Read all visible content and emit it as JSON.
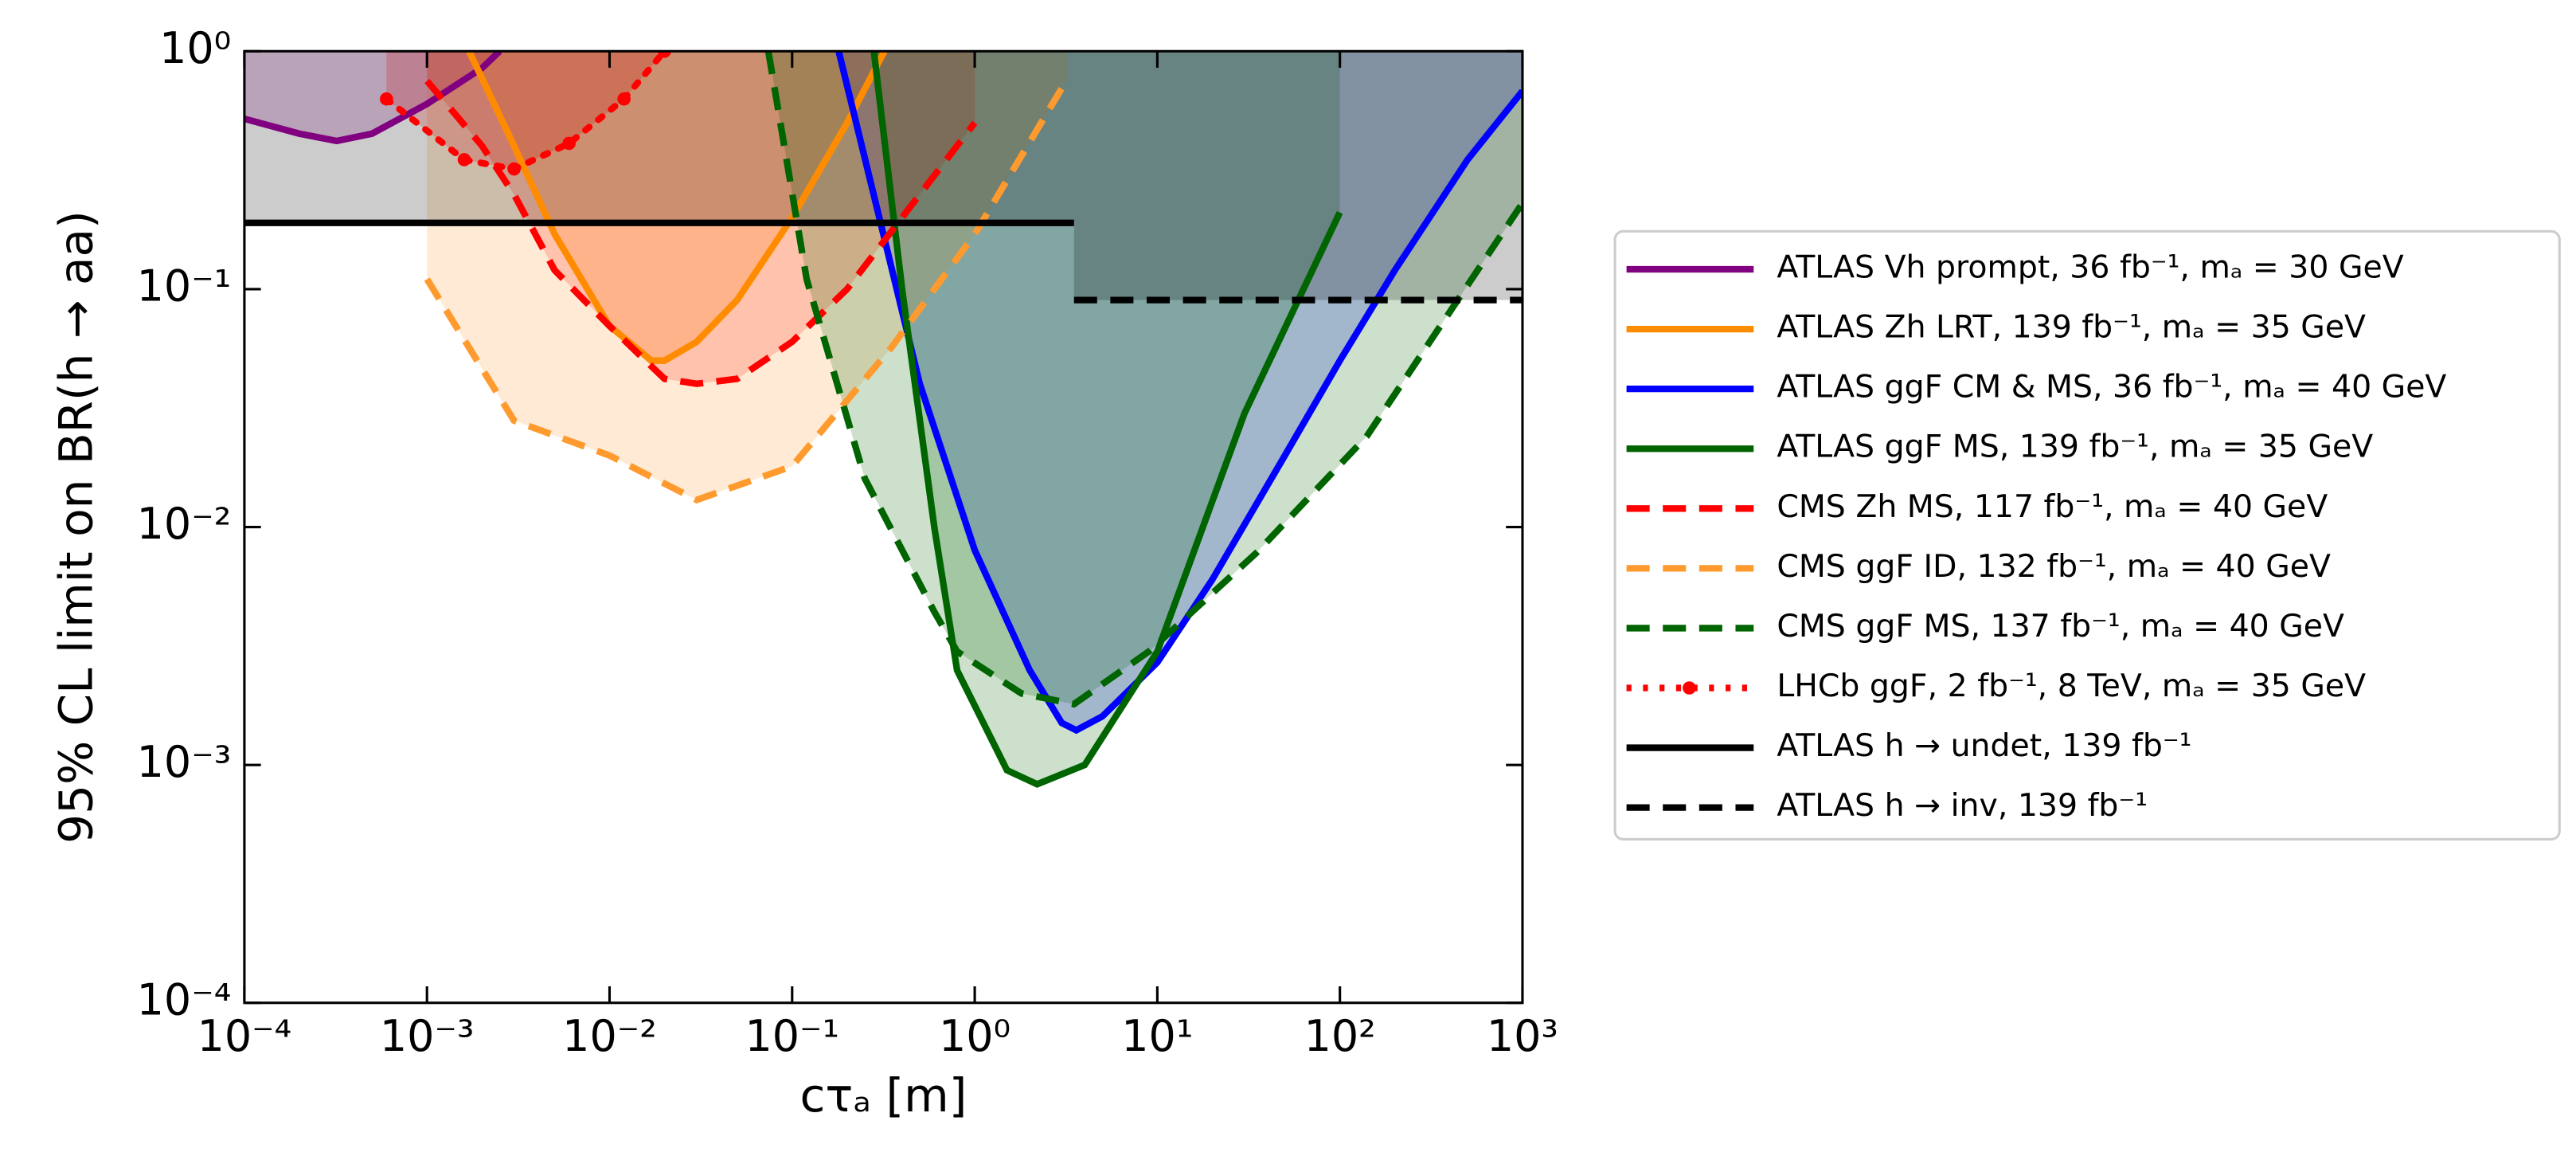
{
  "chart_data": {
    "type": "line",
    "xlabel": "cτₐ [m]",
    "ylabel": "95% CL limit on BR(h → aa)",
    "xscale": "log",
    "yscale": "log",
    "xlim": [
      0.0001,
      1000
    ],
    "ylim": [
      0.0001,
      1
    ],
    "xticks": [
      {
        "value": 0.0001,
        "label": "10⁻⁴"
      },
      {
        "value": 0.001,
        "label": "10⁻³"
      },
      {
        "value": 0.01,
        "label": "10⁻²"
      },
      {
        "value": 0.1,
        "label": "10⁻¹"
      },
      {
        "value": 1,
        "label": "10⁰"
      },
      {
        "value": 10,
        "label": "10¹"
      },
      {
        "value": 100,
        "label": "10²"
      },
      {
        "value": 1000,
        "label": "10³"
      }
    ],
    "yticks": [
      {
        "value": 0.0001,
        "label": "10⁻⁴"
      },
      {
        "value": 0.001,
        "label": "10⁻³"
      },
      {
        "value": 0.01,
        "label": "10⁻²"
      },
      {
        "value": 0.1,
        "label": "10⁻¹"
      },
      {
        "value": 1,
        "label": "10⁰"
      }
    ],
    "legend": "outside right",
    "series": [
      {
        "name": "ATLAS Vh prompt, 36 fb⁻¹, mₐ = 30 GeV",
        "color": "#800080",
        "dash": "solid",
        "fill": true,
        "x": [
          0.0001,
          0.0002,
          0.00032,
          0.0005,
          0.001,
          0.002,
          0.0025
        ],
        "values": [
          0.52,
          0.45,
          0.42,
          0.45,
          0.6,
          0.85,
          1.0
        ]
      },
      {
        "name": "ATLAS Zh LRT, 139 fb⁻¹, mₐ = 35 GeV",
        "color": "#ff8c00",
        "dash": "solid",
        "fill": true,
        "x": [
          0.0017,
          0.003,
          0.005,
          0.01,
          0.017,
          0.02,
          0.03,
          0.05,
          0.1,
          0.2,
          0.32
        ],
        "values": [
          1.0,
          0.4,
          0.17,
          0.07,
          0.05,
          0.05,
          0.06,
          0.09,
          0.2,
          0.5,
          1.0
        ]
      },
      {
        "name": "ATLAS ggF CM & MS, 36 fb⁻¹, mₐ = 40 GeV",
        "color": "#0000ff",
        "dash": "solid",
        "fill": true,
        "x": [
          0.18,
          0.3,
          0.5,
          1,
          2,
          3,
          3.6,
          5,
          10,
          20,
          50,
          100,
          200,
          500,
          1000
        ],
        "values": [
          1.0,
          0.2,
          0.04,
          0.008,
          0.0025,
          0.0015,
          0.0014,
          0.0016,
          0.0027,
          0.006,
          0.02,
          0.05,
          0.12,
          0.35,
          0.68
        ]
      },
      {
        "name": "ATLAS ggF MS, 139 fb⁻¹, mₐ = 35 GeV",
        "color": "#006400",
        "dash": "solid",
        "fill": true,
        "x": [
          0.28,
          0.4,
          0.6,
          0.8,
          1.5,
          2.2,
          4,
          10,
          30,
          100
        ],
        "values": [
          1.0,
          0.1,
          0.01,
          0.0025,
          0.00095,
          0.00083,
          0.001,
          0.003,
          0.03,
          0.21
        ]
      },
      {
        "name": "CMS Zh MS, 117 fb⁻¹, mₐ = 40 GeV",
        "color": "#ff0000",
        "dash": "dashed",
        "fill": true,
        "x": [
          0.001,
          0.002,
          0.003,
          0.005,
          0.01,
          0.02,
          0.03,
          0.05,
          0.1,
          0.2,
          0.5,
          1
        ],
        "values": [
          0.75,
          0.4,
          0.25,
          0.12,
          0.07,
          0.042,
          0.04,
          0.042,
          0.06,
          0.1,
          0.25,
          0.5
        ]
      },
      {
        "name": "CMS ggF ID, 132 fb⁻¹, mₐ = 40 GeV",
        "color": "#ff9a2e",
        "dash": "dashed",
        "fill": true,
        "x": [
          0.001,
          0.003,
          0.01,
          0.03,
          0.1,
          0.35,
          1,
          3.2
        ],
        "values": [
          0.11,
          0.028,
          0.02,
          0.013,
          0.018,
          0.057,
          0.17,
          0.76
        ]
      },
      {
        "name": "CMS ggF MS, 137 fb⁻¹, mₐ = 40 GeV",
        "color": "#006400",
        "dash": "dashed",
        "fill": true,
        "x": [
          0.074,
          0.12,
          0.25,
          0.6,
          0.8,
          1.8,
          3.5,
          9,
          35,
          140,
          1000
        ],
        "values": [
          1.0,
          0.11,
          0.016,
          0.0044,
          0.003,
          0.002,
          0.0018,
          0.003,
          0.0078,
          0.024,
          0.23
        ]
      },
      {
        "name": "LHCb ggF, 2 fb⁻¹, 8 TeV, mₐ = 35 GeV",
        "color": "#ff0000",
        "dash": "dotted",
        "fill": true,
        "markers": true,
        "x": [
          0.0006,
          0.0016,
          0.003,
          0.006,
          0.012,
          0.02
        ],
        "values": [
          0.63,
          0.35,
          0.32,
          0.41,
          0.63,
          1.0
        ]
      },
      {
        "name": "ATLAS h → undet, 139 fb⁻¹",
        "color": "#000000",
        "dash": "solid",
        "fill": true,
        "x": [
          0.0001,
          3.5
        ],
        "values": [
          0.19,
          0.19
        ]
      },
      {
        "name": "ATLAS h → inv, 139 fb⁻¹",
        "color": "#000000",
        "dash": "dashed",
        "fill": true,
        "x": [
          3.5,
          1000
        ],
        "values": [
          0.09,
          0.09
        ]
      }
    ]
  }
}
